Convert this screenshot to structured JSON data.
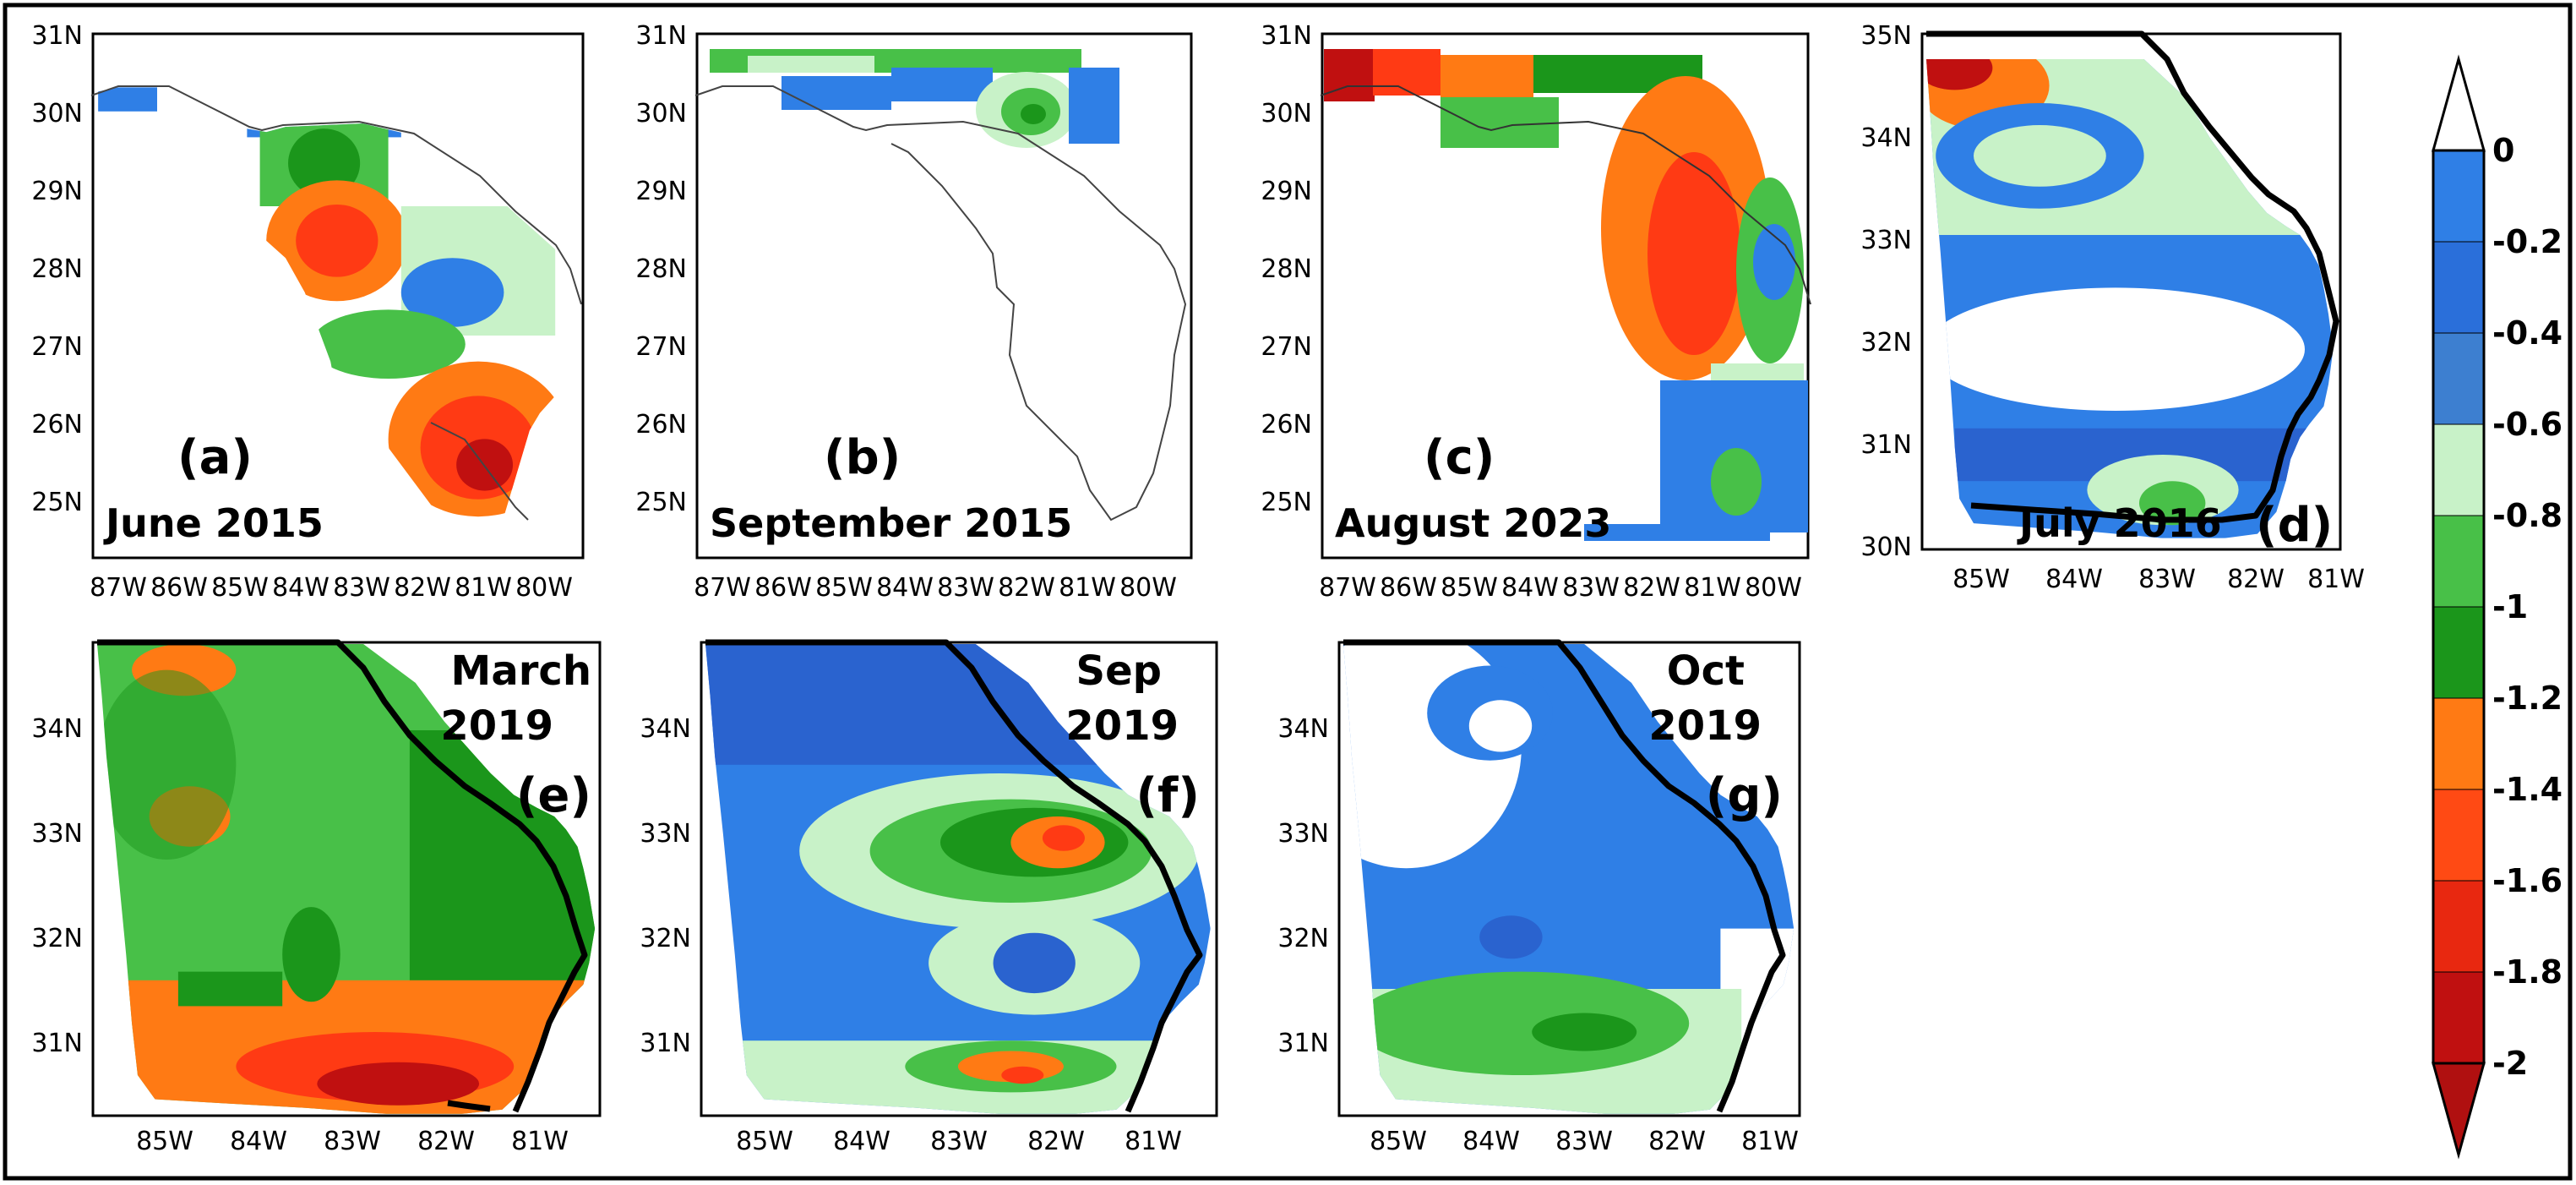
{
  "figure": {
    "panels": [
      {
        "id": "a",
        "letter": "(a)",
        "date": "June 2015",
        "region": "Florida",
        "lat_ticks": [
          "31N",
          "30N",
          "29N",
          "28N",
          "27N",
          "26N",
          "25N"
        ],
        "lon_ticks": [
          "87W",
          "86W",
          "85W",
          "84W",
          "83W",
          "82W",
          "81W",
          "80W"
        ]
      },
      {
        "id": "b",
        "letter": "(b)",
        "date": "September 2015",
        "region": "Florida",
        "lat_ticks": [
          "31N",
          "30N",
          "29N",
          "28N",
          "27N",
          "26N",
          "25N"
        ],
        "lon_ticks": [
          "87W",
          "86W",
          "85W",
          "84W",
          "83W",
          "82W",
          "81W",
          "80W"
        ]
      },
      {
        "id": "c",
        "letter": "(c)",
        "date": "August 2023",
        "region": "Florida",
        "lat_ticks": [
          "31N",
          "30N",
          "29N",
          "28N",
          "27N",
          "26N",
          "25N"
        ],
        "lon_ticks": [
          "87W",
          "86W",
          "85W",
          "84W",
          "83W",
          "82W",
          "81W",
          "80W"
        ]
      },
      {
        "id": "d",
        "letter": "(d)",
        "date": "July 2016",
        "region": "Georgia",
        "lat_ticks": [
          "35N",
          "34N",
          "33N",
          "32N",
          "31N",
          "30N"
        ],
        "lon_ticks": [
          "85W",
          "84W",
          "83W",
          "82W",
          "81W"
        ]
      },
      {
        "id": "e",
        "letter": "(e)",
        "date_lines": [
          "March",
          "2019"
        ],
        "region": "Georgia",
        "lat_ticks": [
          "34N",
          "33N",
          "32N",
          "31N"
        ],
        "lon_ticks": [
          "85W",
          "84W",
          "83W",
          "82W",
          "81W"
        ]
      },
      {
        "id": "f",
        "letter": "(f)",
        "date_lines": [
          "Sep",
          "2019"
        ],
        "region": "Georgia",
        "lat_ticks": [
          "34N",
          "33N",
          "32N",
          "31N"
        ],
        "lon_ticks": [
          "85W",
          "84W",
          "83W",
          "82W",
          "81W"
        ]
      },
      {
        "id": "g",
        "letter": "(g)",
        "date_lines": [
          "Oct",
          "2019"
        ],
        "region": "Georgia",
        "lat_ticks": [
          "34N",
          "33N",
          "32N",
          "31N"
        ],
        "lon_ticks": [
          "85W",
          "84W",
          "83W",
          "82W",
          "81W"
        ]
      }
    ],
    "colorbar": {
      "labels": [
        "0",
        "-0.2",
        "-0.4",
        "-0.6",
        "-0.8",
        "-1",
        "-1.2",
        "-1.4",
        "-1.6",
        "-1.8",
        "-2"
      ],
      "colors": [
        "#2f7fe6",
        "#2a6fda",
        "#3d7fd0",
        "#c8f2c8",
        "#48c048",
        "#1b961b",
        "#ff7a14",
        "#ff4a14",
        "#e82810",
        "#c01010",
        "#b00d0d"
      ],
      "top_extension_color": "#ffffff",
      "bottom_extension_color": "#b01010"
    },
    "palette": {
      "outline": "#000000",
      "water": "#ffffff",
      "blue": "#2f7fe6",
      "dark_blue": "#2a63cf",
      "light_green": "#c8f2c8",
      "green": "#48c048",
      "dark_green": "#1b961b",
      "orange": "#ff7a14",
      "red": "#ff3a14",
      "dark_red": "#c01010"
    }
  }
}
